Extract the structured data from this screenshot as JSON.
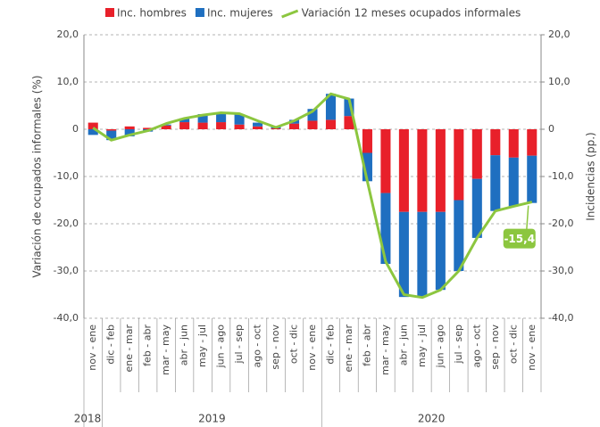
{
  "chart_data": {
    "type": "bar",
    "categories": [
      "nov - ene",
      "dic - feb",
      "ene - mar",
      "feb - abr",
      "mar - may",
      "abr - jun",
      "may - jul",
      "jun - ago",
      "jul - sep",
      "ago - oct",
      "sep - nov",
      "oct - dic",
      "nov - ene",
      "dic - feb",
      "ene - mar",
      "feb - abr",
      "mar - may",
      "abr - jun",
      "may - jul",
      "jun - ago",
      "jul - sep",
      "ago - oct",
      "sep - nov",
      "oct - dic",
      "nov - ene"
    ],
    "groups": [
      {
        "label": "2018",
        "count": 1
      },
      {
        "label": "2019",
        "count": 12
      },
      {
        "label": "2020",
        "count": 12
      }
    ],
    "series": [
      {
        "name": "Inc. hombres",
        "color": "#e8202a",
        "axis": "y2",
        "values": [
          1.4,
          -0.3,
          0.6,
          0.3,
          0.8,
          1.5,
          1.4,
          1.5,
          1.0,
          0.6,
          0.2,
          1.2,
          1.8,
          2.0,
          2.8,
          -5.0,
          -13.5,
          -17.5,
          -17.5,
          -17.5,
          -15.0,
          -10.5,
          -5.5,
          -6.0,
          -5.6
        ]
      },
      {
        "name": "Inc. mujeres",
        "color": "#1f6fc0",
        "axis": "y2",
        "values": [
          -1.2,
          -2.0,
          -1.5,
          -0.5,
          0.2,
          0.8,
          1.8,
          2.0,
          2.2,
          0.8,
          0.3,
          0.8,
          2.5,
          5.5,
          3.7,
          -6.0,
          -15.0,
          -18.0,
          -18.0,
          -16.5,
          -15.0,
          -12.5,
          -11.8,
          -10.3,
          -10.0
        ]
      },
      {
        "name": "Variación 12 meses ocupados informales",
        "color": "#8cc63f",
        "type": "line",
        "values": [
          0.3,
          -2.3,
          -1.2,
          -0.3,
          1.2,
          2.3,
          3.0,
          3.5,
          3.3,
          1.8,
          0.4,
          1.8,
          3.8,
          7.5,
          6.4,
          -11.0,
          -28.0,
          -35.0,
          -35.6,
          -34.0,
          -30.0,
          -23.0,
          -17.3,
          -16.3,
          -15.4
        ],
        "value_labels": [
          null,
          null,
          null,
          null,
          null,
          null,
          null,
          null,
          null,
          null,
          null,
          null,
          null,
          null,
          null,
          null,
          null,
          null,
          null,
          null,
          null,
          null,
          null,
          null,
          "-15,4"
        ]
      }
    ],
    "ylabel": "Variación de ocupados informales (%)",
    "y2label": "Incidencias (pp.)",
    "ylim": [
      -40,
      20
    ],
    "yticks": [
      {
        "value": -40,
        "label": "-40,0"
      },
      {
        "value": -30,
        "label": "-30,0"
      },
      {
        "value": -20,
        "label": "-20,0"
      },
      {
        "value": -10,
        "label": "-10,0"
      },
      0,
      {
        "value": 10,
        "label": "10,0"
      },
      {
        "value": 20,
        "label": "20,0"
      }
    ],
    "y2lim": [
      -40,
      20
    ],
    "y2ticks": [
      {
        "value": -40,
        "label": "-40,0"
      },
      {
        "value": -30,
        "label": "-30,0"
      },
      {
        "value": -20,
        "label": "-20,0"
      },
      {
        "value": -10,
        "label": "-10,0"
      },
      0,
      {
        "value": 10,
        "label": "10,0"
      },
      {
        "value": 20,
        "label": "20,0"
      }
    ],
    "grid": true,
    "legend": "top"
  }
}
